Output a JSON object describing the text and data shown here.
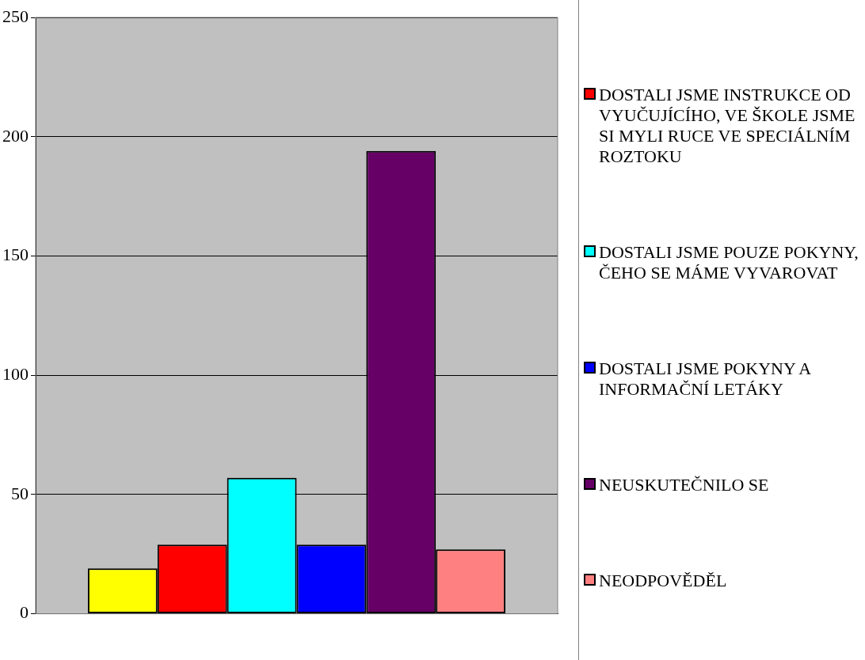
{
  "chart_data": {
    "type": "bar",
    "categories": [
      null
    ],
    "series": [
      {
        "color": "#ffff00",
        "values": [
          19
        ]
      },
      {
        "name": "DOSTALI JSME INSTRUKCE OD VYUČUJÍCÍHO, VE ŠKOLE JSME SI MYLI RUCE VE SPECIÁLNÍM ROZTOKU",
        "color": "#ff0000",
        "values": [
          29
        ]
      },
      {
        "name": "DOSTALI JSME POUZE POKYNY, ČEHO SE MÁME VYVAROVAT",
        "color": "#00ffff",
        "values": [
          57
        ]
      },
      {
        "name": "DOSTALI JSME POKYNY A INFORMAČNÍ LETÁKY",
        "color": "#0000ff",
        "values": [
          29
        ]
      },
      {
        "name": "NEUSKUTEČNILO SE",
        "color": "#660066",
        "values": [
          194
        ]
      },
      {
        "name": "NEODPOVĚDĚL",
        "color": "#ff8080",
        "values": [
          27
        ]
      }
    ],
    "ylim": [
      0,
      250
    ],
    "yticks": [
      0,
      50,
      100,
      150,
      200,
      250
    ],
    "grid": "y",
    "legend": "right"
  }
}
